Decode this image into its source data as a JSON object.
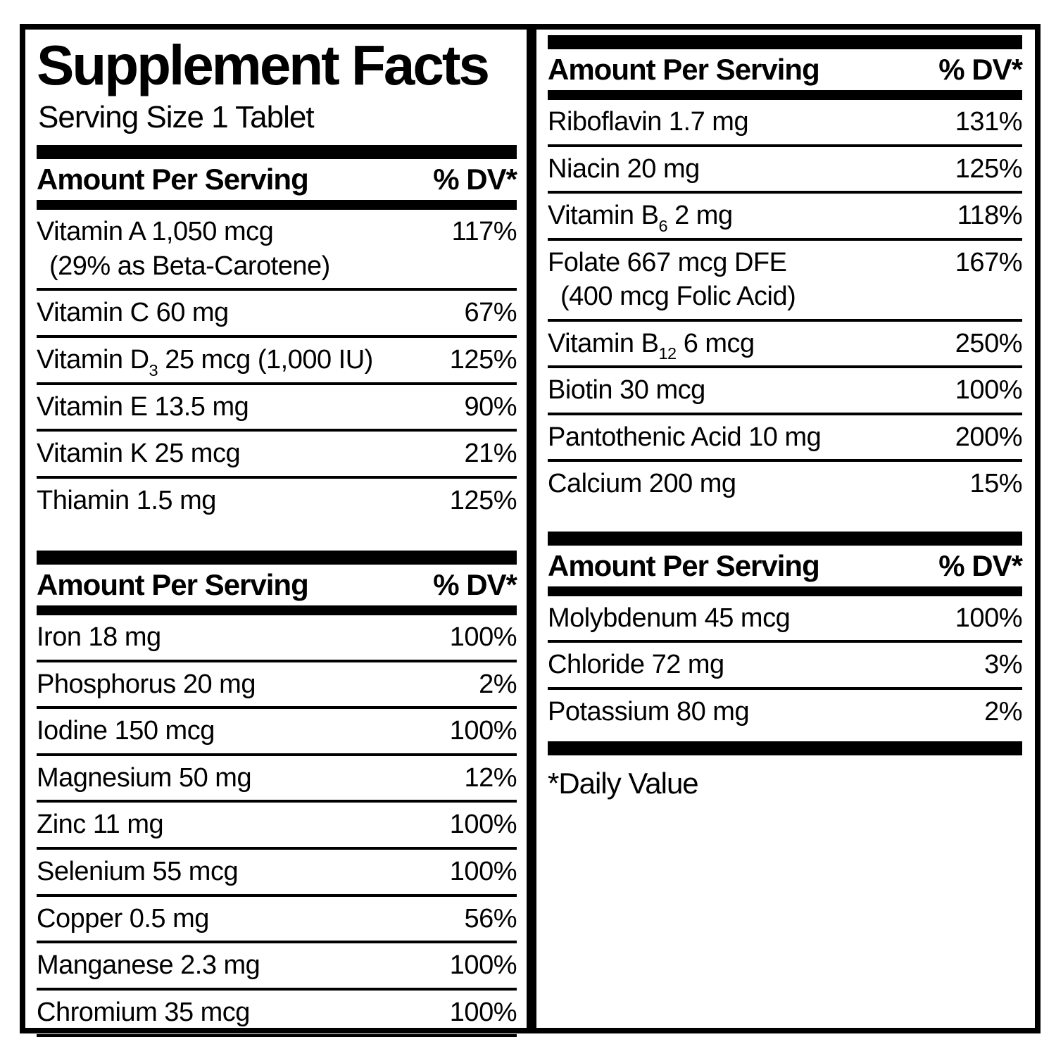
{
  "title": "Supplement Facts",
  "serving_size": "Serving Size 1 Tablet",
  "footnote": "*Daily Value",
  "colors": {
    "ink": "#000000",
    "background": "#ffffff"
  },
  "left1": {
    "header": {
      "amount": "Amount Per Serving",
      "dv": "% DV*"
    },
    "rows": [
      {
        "pre": "Vitamin A 1,050 mcg",
        "note": "(29% as Beta-Carotene)",
        "dv": "117%"
      },
      {
        "pre": "Vitamin C 60 mg",
        "dv": "67%"
      },
      {
        "pre": "Vitamin D",
        "sub": "3",
        "post": " 25 mcg (1,000 IU)",
        "dv": "125%"
      },
      {
        "pre": "Vitamin E 13.5 mg",
        "dv": "90%"
      },
      {
        "pre": "Vitamin K 25 mcg",
        "dv": "21%"
      },
      {
        "pre": "Thiamin 1.5 mg",
        "dv": "125%"
      }
    ]
  },
  "left2": {
    "header": {
      "amount": "Amount Per Serving",
      "dv": "% DV*"
    },
    "rows": [
      {
        "pre": "Iron 18 mg",
        "dv": "100%"
      },
      {
        "pre": "Phosphorus 20 mg",
        "dv": "2%"
      },
      {
        "pre": "Iodine 150 mcg",
        "dv": "100%"
      },
      {
        "pre": "Magnesium 50 mg",
        "dv": "12%"
      },
      {
        "pre": "Zinc 11 mg",
        "dv": "100%"
      },
      {
        "pre": "Selenium 55 mcg",
        "dv": "100%"
      },
      {
        "pre": "Copper 0.5 mg",
        "dv": "56%"
      },
      {
        "pre": "Manganese 2.3 mg",
        "dv": "100%"
      },
      {
        "pre": "Chromium 35 mcg",
        "dv": "100%"
      }
    ]
  },
  "right1": {
    "header": {
      "amount": "Amount Per Serving",
      "dv": "% DV*"
    },
    "rows": [
      {
        "pre": "Riboflavin 1.7 mg",
        "dv": "131%"
      },
      {
        "pre": "Niacin 20 mg",
        "dv": "125%"
      },
      {
        "pre": "Vitamin B",
        "sub": "6",
        "post": " 2 mg",
        "dv": "118%"
      },
      {
        "pre": "Folate 667 mcg DFE",
        "note": "(400 mcg Folic Acid)",
        "dv": "167%"
      },
      {
        "pre": "Vitamin B",
        "sub": "12",
        "post": " 6 mcg",
        "dv": "250%"
      },
      {
        "pre": "Biotin 30 mcg",
        "dv": "100%"
      },
      {
        "pre": "Pantothenic Acid 10 mg",
        "dv": "200%"
      },
      {
        "pre": "Calcium 200 mg",
        "dv": "15%"
      }
    ]
  },
  "right2": {
    "header": {
      "amount": "Amount Per Serving",
      "dv": "% DV*"
    },
    "rows": [
      {
        "pre": "Molybdenum 45 mcg",
        "dv": "100%"
      },
      {
        "pre": "Chloride 72 mg",
        "dv": "3%"
      },
      {
        "pre": "Potassium 80 mg",
        "dv": "2%"
      }
    ]
  }
}
